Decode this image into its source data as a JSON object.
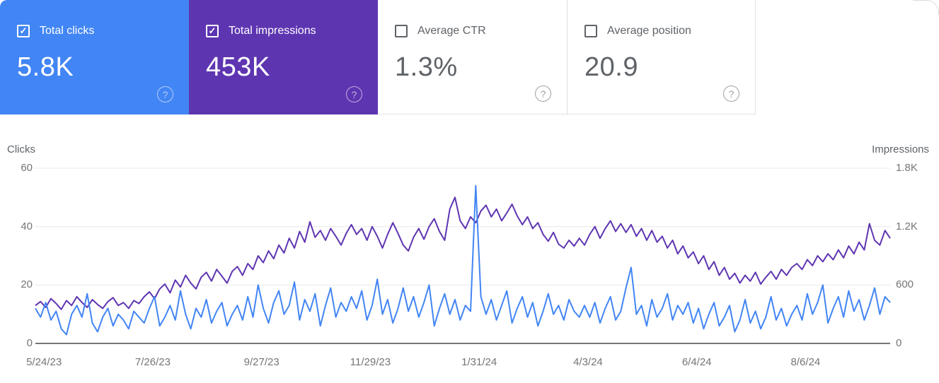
{
  "icons": {
    "check_glyph": "✓",
    "help_glyph": "?"
  },
  "cards": [
    {
      "label": "Total clicks",
      "value": "5.8K",
      "checked": true,
      "bg": "#4285f4",
      "color": "#ffffff"
    },
    {
      "label": "Total impressions",
      "value": "453K",
      "checked": true,
      "bg": "#5e35b1",
      "color": "#ffffff"
    },
    {
      "label": "Average CTR",
      "value": "1.3%",
      "checked": false,
      "bg": "#ffffff",
      "color": "#5f6368"
    },
    {
      "label": "Average position",
      "value": "20.9",
      "checked": false,
      "bg": "#ffffff",
      "color": "#5f6368"
    }
  ],
  "chart_data": {
    "type": "line",
    "legend_position": "none",
    "grid": "horizontal",
    "grid_color": "#e8e8e8",
    "baseline_color": "#757575",
    "left_axis": {
      "title": "Clicks",
      "tick_labels": [
        "60",
        "40",
        "20",
        "0"
      ],
      "tick_values": [
        60,
        40,
        20,
        0
      ],
      "max": 60
    },
    "right_axis": {
      "title": "Impressions",
      "tick_labels": [
        "1.8K",
        "1.2K",
        "600",
        "0"
      ],
      "tick_values": [
        1800,
        1200,
        600,
        0
      ],
      "max": 1800
    },
    "x_axis": {
      "tick_labels": [
        "5/24/23",
        "7/26/23",
        "9/27/23",
        "11/29/23",
        "1/31/24",
        "4/3/24",
        "6/4/24",
        "8/6/24"
      ],
      "tick_days": [
        5,
        68,
        131,
        194,
        257,
        320,
        383,
        446
      ],
      "total_days": 495
    },
    "sample_interval_days": 3,
    "series": [
      {
        "name": "Impressions",
        "axis": "right",
        "color": "#5e35b1",
        "values": [
          390,
          430,
          370,
          460,
          410,
          350,
          440,
          390,
          480,
          420,
          370,
          450,
          400,
          360,
          430,
          470,
          390,
          420,
          360,
          440,
          410,
          480,
          530,
          460,
          560,
          610,
          520,
          650,
          580,
          700,
          620,
          560,
          680,
          730,
          640,
          760,
          690,
          620,
          740,
          790,
          700,
          820,
          760,
          900,
          830,
          950,
          870,
          1010,
          930,
          1080,
          980,
          1150,
          1040,
          1250,
          1090,
          1160,
          1060,
          1180,
          1100,
          1010,
          1130,
          1220,
          1120,
          1180,
          1060,
          1200,
          1100,
          980,
          1120,
          1240,
          1130,
          1010,
          950,
          1090,
          1180,
          1070,
          1200,
          1280,
          1150,
          1060,
          1380,
          1500,
          1260,
          1180,
          1300,
          1240,
          1360,
          1420,
          1300,
          1380,
          1260,
          1340,
          1430,
          1310,
          1220,
          1300,
          1180,
          1240,
          1120,
          1050,
          1140,
          1020,
          980,
          1060,
          1000,
          1080,
          1010,
          1120,
          1200,
          1080,
          1180,
          1260,
          1150,
          1230,
          1140,
          1220,
          1100,
          1180,
          1060,
          1160,
          1040,
          1100,
          980,
          1060,
          920,
          1000,
          880,
          940,
          820,
          900,
          760,
          840,
          700,
          780,
          660,
          720,
          620,
          700,
          640,
          730,
          610,
          680,
          740,
          660,
          760,
          700,
          780,
          820,
          760,
          860,
          800,
          900,
          840,
          920,
          860,
          960,
          880,
          1000,
          920,
          1040,
          960,
          1230,
          1060,
          1010,
          1160,
          1080
        ]
      },
      {
        "name": "Clicks",
        "axis": "left",
        "color": "#4285f4",
        "values": [
          12,
          9,
          14,
          8,
          11,
          5,
          3,
          10,
          13,
          9,
          17,
          7,
          4,
          9,
          12,
          6,
          10,
          8,
          5,
          11,
          9,
          7,
          12,
          16,
          6,
          9,
          13,
          8,
          18,
          10,
          5,
          12,
          9,
          15,
          7,
          11,
          14,
          6,
          10,
          13,
          8,
          16,
          9,
          20,
          12,
          7,
          14,
          18,
          10,
          13,
          21,
          8,
          15,
          11,
          17,
          6,
          13,
          19,
          9,
          14,
          11,
          16,
          12,
          18,
          8,
          13,
          22,
          10,
          15,
          7,
          12,
          19,
          11,
          16,
          9,
          14,
          20,
          6,
          12,
          17,
          10,
          15,
          8,
          13,
          11,
          54,
          16,
          10,
          15,
          8,
          13,
          18,
          7,
          12,
          16,
          9,
          14,
          6,
          11,
          17,
          10,
          13,
          8,
          15,
          11,
          9,
          13,
          9,
          14,
          7,
          12,
          16,
          8,
          11,
          19,
          26,
          10,
          13,
          6,
          15,
          9,
          12,
          17,
          8,
          13,
          10,
          14,
          7,
          12,
          5,
          10,
          14,
          6,
          9,
          13,
          4,
          8,
          15,
          7,
          11,
          5,
          9,
          16,
          8,
          12,
          6,
          10,
          13,
          8,
          17,
          10,
          14,
          20,
          7,
          12,
          16,
          9,
          18,
          11,
          15,
          8,
          13,
          19,
          10,
          16,
          14
        ]
      }
    ]
  }
}
